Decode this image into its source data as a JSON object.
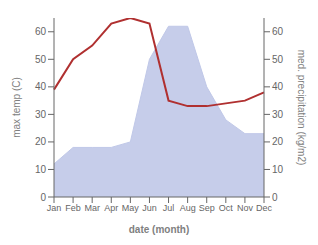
{
  "chart_data": {
    "type": "line",
    "categories": [
      "Jan",
      "Feb",
      "Mar",
      "Apr",
      "May",
      "Jun",
      "Jul",
      "Aug",
      "Sep",
      "Oct",
      "Nov",
      "Dec"
    ],
    "xlabel": "date (month)",
    "ylabel": "max temp (C)",
    "y2label": "med. precipitation (kg/m2)",
    "series": [
      {
        "type": "area",
        "axis": "y2",
        "color": "#c0c8e8",
        "values": [
          12,
          18,
          18,
          18,
          20,
          50,
          62,
          62,
          40,
          28,
          23,
          23
        ]
      },
      {
        "type": "line",
        "color": "#b03030",
        "values": [
          39,
          50,
          55,
          63,
          65,
          63,
          35,
          33,
          33,
          34,
          35,
          38
        ]
      }
    ],
    "ylim": [
      0,
      65
    ],
    "yticks": [
      0,
      10,
      20,
      30,
      40,
      50,
      60
    ],
    "y2lim": [
      0,
      65
    ],
    "y2ticks": [
      0,
      10,
      20,
      30,
      40,
      50,
      60
    ],
    "grid": false
  }
}
